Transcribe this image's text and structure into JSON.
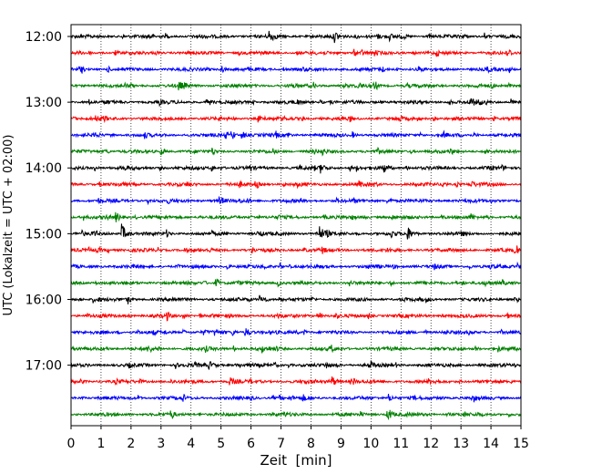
{
  "chart_data": {
    "type": "line",
    "xlabel": "Zeit  [min]",
    "ylabel": "UTC (Lokalzeit = UTC + 02:00)",
    "xlim": [
      0,
      15
    ],
    "x_ticks": [
      "0",
      "1",
      "2",
      "3",
      "4",
      "5",
      "6",
      "7",
      "8",
      "9",
      "10",
      "11",
      "12",
      "13",
      "14",
      "15"
    ],
    "y_ticks": [
      "12:00",
      "13:00",
      "14:00",
      "15:00",
      "16:00",
      "17:00"
    ],
    "grid": "vertical dotted lines at each minute",
    "trace_interval_min": 15,
    "rows_start": "12:00",
    "row_count": 24,
    "colors": [
      "#000000",
      "#ff0000",
      "#0000ff",
      "#008000"
    ],
    "events": [
      {
        "row": 0,
        "t": 6.6,
        "amp": 1.0
      },
      {
        "row": 0,
        "t": 8.8,
        "amp": 0.7
      },
      {
        "row": 3,
        "t": 3.6,
        "amp": 0.6
      },
      {
        "row": 4,
        "t": 13.3,
        "amp": 0.7
      },
      {
        "row": 6,
        "t": 5.7,
        "amp": 0.6
      },
      {
        "row": 8,
        "t": 8.3,
        "amp": 0.8
      },
      {
        "row": 8,
        "t": 10.4,
        "amp": 0.9
      },
      {
        "row": 9,
        "t": 13.3,
        "amp": 0.6
      },
      {
        "row": 11,
        "t": 1.5,
        "amp": 0.7
      },
      {
        "row": 12,
        "t": 1.7,
        "amp": 1.3
      },
      {
        "row": 12,
        "t": 8.3,
        "amp": 1.1
      },
      {
        "row": 12,
        "t": 11.2,
        "amp": 1.3
      },
      {
        "row": 16,
        "t": 6.3,
        "amp": 0.7
      },
      {
        "row": 18,
        "t": 5.8,
        "amp": 0.8
      },
      {
        "row": 20,
        "t": 4.6,
        "amp": 0.6
      },
      {
        "row": 21,
        "t": 8.7,
        "amp": 0.9
      },
      {
        "row": 21,
        "t": 5.3,
        "amp": 0.6
      },
      {
        "row": 22,
        "t": 10.6,
        "amp": 0.6
      },
      {
        "row": 23,
        "t": 10.6,
        "amp": 0.6
      }
    ]
  }
}
